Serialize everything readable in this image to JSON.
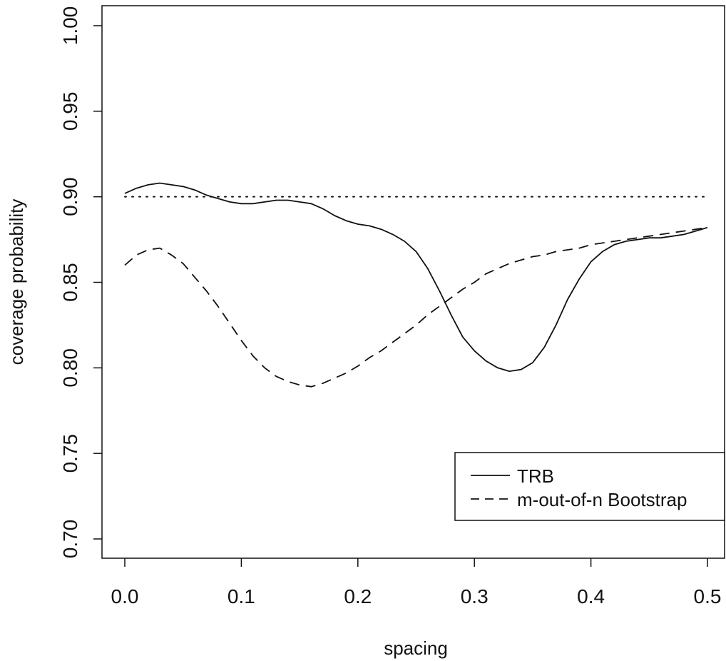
{
  "chart_data": {
    "type": "line",
    "title": "",
    "xlabel": "spacing",
    "ylabel": "coverage probability",
    "xlim": [
      0.0,
      0.5
    ],
    "ylim": [
      0.7,
      1.0
    ],
    "xticks": [
      0.0,
      0.1,
      0.2,
      0.3,
      0.4,
      0.5
    ],
    "xtick_labels": [
      "0.0",
      "0.1",
      "0.2",
      "0.3",
      "0.4",
      "0.5"
    ],
    "yticks": [
      0.7,
      0.75,
      0.8,
      0.85,
      0.9,
      0.95,
      1.0
    ],
    "ytick_labels": [
      "0.70",
      "0.75",
      "0.80",
      "0.85",
      "0.90",
      "0.95",
      "1.00"
    ],
    "grid": false,
    "legend_position": "bottom-right",
    "reference_line": {
      "y": 0.9,
      "style": "dotted"
    },
    "series": [
      {
        "name": "TRB",
        "style": "solid",
        "x": [
          0.0,
          0.01,
          0.02,
          0.03,
          0.04,
          0.05,
          0.06,
          0.07,
          0.08,
          0.09,
          0.1,
          0.11,
          0.12,
          0.13,
          0.14,
          0.15,
          0.16,
          0.17,
          0.18,
          0.19,
          0.2,
          0.21,
          0.22,
          0.23,
          0.24,
          0.25,
          0.26,
          0.27,
          0.28,
          0.29,
          0.3,
          0.31,
          0.32,
          0.33,
          0.34,
          0.35,
          0.36,
          0.37,
          0.38,
          0.39,
          0.4,
          0.41,
          0.42,
          0.43,
          0.44,
          0.45,
          0.46,
          0.47,
          0.48,
          0.49,
          0.5
        ],
        "y": [
          0.902,
          0.905,
          0.907,
          0.908,
          0.907,
          0.906,
          0.904,
          0.901,
          0.899,
          0.897,
          0.896,
          0.896,
          0.897,
          0.898,
          0.898,
          0.897,
          0.896,
          0.893,
          0.889,
          0.886,
          0.884,
          0.883,
          0.881,
          0.878,
          0.874,
          0.868,
          0.858,
          0.845,
          0.831,
          0.818,
          0.81,
          0.804,
          0.8,
          0.798,
          0.799,
          0.803,
          0.812,
          0.825,
          0.84,
          0.852,
          0.862,
          0.868,
          0.872,
          0.874,
          0.875,
          0.876,
          0.876,
          0.877,
          0.878,
          0.88,
          0.882
        ]
      },
      {
        "name": "m-out-of-n Bootstrap",
        "style": "dashed",
        "x": [
          0.0,
          0.01,
          0.02,
          0.03,
          0.04,
          0.05,
          0.06,
          0.07,
          0.08,
          0.09,
          0.1,
          0.11,
          0.12,
          0.13,
          0.14,
          0.15,
          0.16,
          0.17,
          0.18,
          0.19,
          0.2,
          0.21,
          0.22,
          0.23,
          0.24,
          0.25,
          0.26,
          0.27,
          0.28,
          0.29,
          0.3,
          0.31,
          0.32,
          0.33,
          0.34,
          0.35,
          0.36,
          0.37,
          0.38,
          0.39,
          0.4,
          0.41,
          0.42,
          0.43,
          0.44,
          0.45,
          0.46,
          0.47,
          0.48,
          0.49,
          0.5
        ],
        "y": [
          0.86,
          0.866,
          0.869,
          0.87,
          0.866,
          0.861,
          0.853,
          0.845,
          0.836,
          0.826,
          0.816,
          0.807,
          0.8,
          0.795,
          0.792,
          0.79,
          0.789,
          0.791,
          0.794,
          0.797,
          0.801,
          0.806,
          0.81,
          0.815,
          0.82,
          0.825,
          0.831,
          0.836,
          0.841,
          0.846,
          0.85,
          0.855,
          0.858,
          0.861,
          0.863,
          0.865,
          0.866,
          0.868,
          0.869,
          0.87,
          0.872,
          0.873,
          0.874,
          0.875,
          0.876,
          0.877,
          0.878,
          0.879,
          0.88,
          0.881,
          0.882
        ]
      }
    ]
  }
}
